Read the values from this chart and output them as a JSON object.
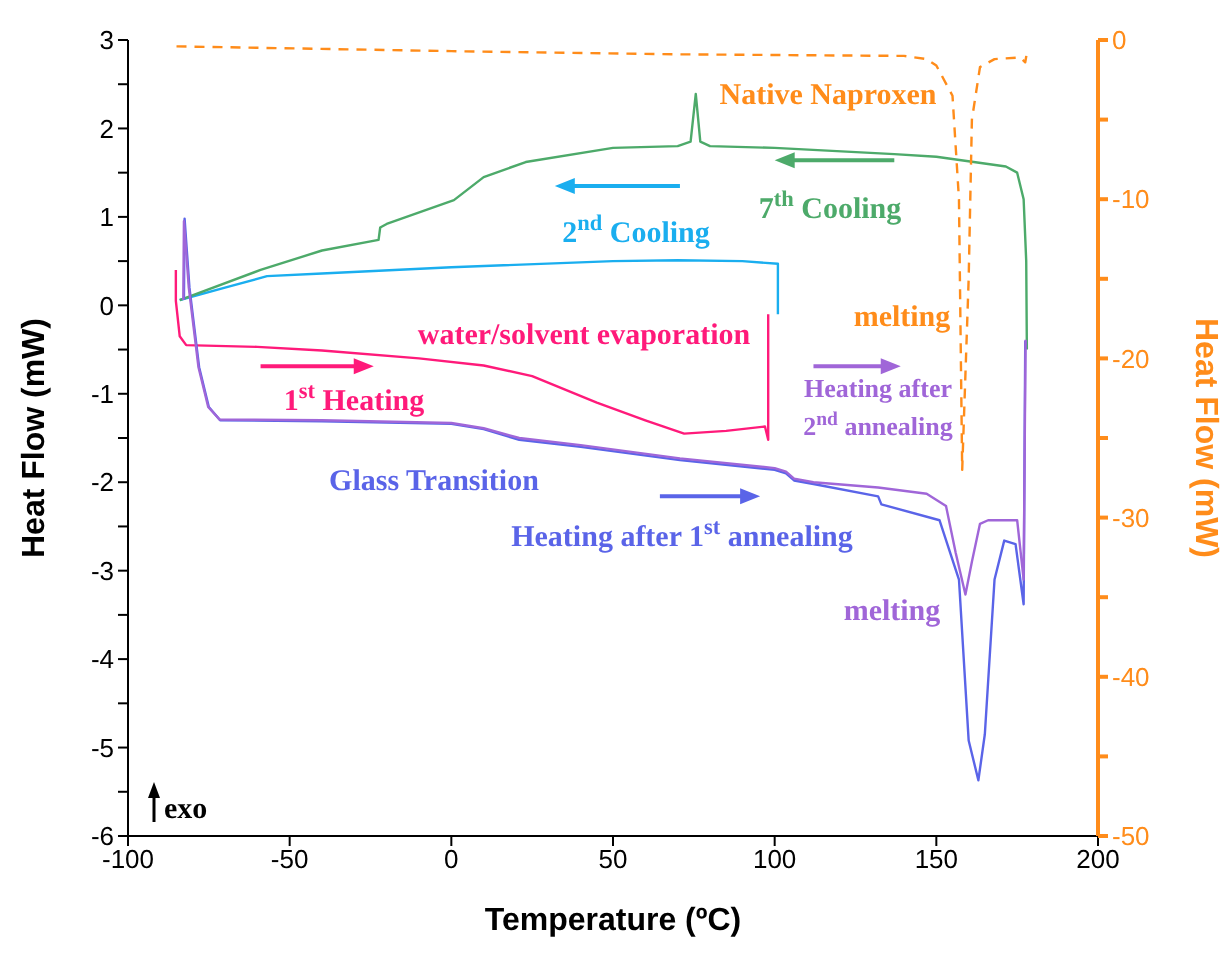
{
  "chart_data": {
    "type": "line",
    "xlabel": "Temperature (ºC)",
    "ylabel": "Heat Flow (mW)",
    "y2label": "Heat Flow (mW)",
    "xlim": [
      -100,
      200
    ],
    "xticks": [
      -100,
      -50,
      0,
      50,
      100,
      150,
      200
    ],
    "ylim": [
      -6,
      3
    ],
    "yticks": [
      -6,
      {
        "value": -5.5,
        "label": null
      },
      -5,
      {
        "value": -4.5,
        "label": null
      },
      -4,
      {
        "value": -3.5,
        "label": null
      },
      -3,
      {
        "value": -2.5,
        "label": null
      },
      -2,
      {
        "value": -1.5,
        "label": null
      },
      -1,
      {
        "value": -0.5,
        "label": null
      },
      0,
      {
        "value": 0.5,
        "label": null
      },
      1,
      {
        "value": 1.5,
        "label": null
      },
      2,
      {
        "value": 2.5,
        "label": null
      },
      3
    ],
    "y2lim": [
      -50,
      0
    ],
    "y2ticks": [
      -50,
      {
        "value": -45,
        "label": null
      },
      -40,
      {
        "value": -35,
        "label": null
      },
      -30,
      {
        "value": -25,
        "label": null
      },
      -20,
      {
        "value": -15,
        "label": null
      },
      -10,
      {
        "value": -5,
        "label": null
      },
      0
    ],
    "marker": "none",
    "legend": "top",
    "series": [
      {
        "name": "1$^{st}$ Heating",
        "color": "#ff1a7a",
        "x": [
          -85.2,
          -85.2,
          -84,
          -82,
          -60,
          -40,
          -10,
          10,
          25,
          45,
          60,
          72,
          85,
          97,
          98,
          98
        ],
        "values": [
          0.4,
          0.05,
          -0.35,
          -0.45,
          -0.47,
          -0.51,
          -0.6,
          -0.68,
          -0.8,
          -1.1,
          -1.3,
          -1.45,
          -1.42,
          -1.37,
          -1.52,
          -0.1
        ]
      },
      {
        "name": "2$^{nd}$ Cooling",
        "color": "#1aaeef",
        "x": [
          101,
          101,
          90,
          70,
          50,
          0,
          -40,
          -57,
          -70,
          -84
        ],
        "values": [
          -0.1,
          0.47,
          0.5,
          0.51,
          0.5,
          0.43,
          0.36,
          0.33,
          0.2,
          0.06
        ]
      },
      {
        "name": "7$^{th}$ Cooling",
        "color": "#4daa6a",
        "x": [
          178,
          177.8,
          177,
          175,
          171.5,
          150,
          137,
          100,
          80,
          77,
          75.6,
          74,
          70,
          50,
          23,
          10,
          0.8,
          -20,
          -22,
          -22.5,
          -40,
          -59,
          -84
        ],
        "values": [
          -0.5,
          0.5,
          1.2,
          1.5,
          1.57,
          1.68,
          1.71,
          1.78,
          1.8,
          1.85,
          2.39,
          1.85,
          1.8,
          1.78,
          1.62,
          1.45,
          1.19,
          0.92,
          0.88,
          0.74,
          0.62,
          0.4,
          0.06
        ]
      },
      {
        "name": "Heating after 1$^{st}$ annealing",
        "color": "#5a64e8",
        "x": [
          -82.7,
          -82.5,
          -81,
          -78,
          -75,
          -71.5,
          -40,
          0,
          10,
          21,
          40,
          70.7,
          100,
          103.5,
          106,
          112,
          132,
          133,
          151,
          157,
          160,
          163,
          165,
          168,
          171,
          174.5,
          177,
          177.5
        ],
        "values": [
          0.06,
          0.98,
          0.2,
          -0.7,
          -1.15,
          -1.3,
          -1.31,
          -1.34,
          -1.4,
          -1.52,
          -1.6,
          -1.75,
          -1.86,
          -1.9,
          -1.98,
          -2.02,
          -2.16,
          -2.25,
          -2.43,
          -3.1,
          -4.92,
          -5.37,
          -4.85,
          -3.1,
          -2.66,
          -2.7,
          -3.38,
          -0.4
        ]
      },
      {
        "name": "Heating after 2$^{nd}$ annealing",
        "color": "#a066d8",
        "x": [
          -82.9,
          -82.7,
          -81.2,
          -78.2,
          -75.2,
          -71.7,
          -40,
          0,
          10,
          21,
          40,
          70.7,
          100,
          103.5,
          106,
          112,
          132,
          147,
          153,
          156,
          159,
          161,
          163.5,
          166,
          175,
          177,
          177.6
        ],
        "values": [
          0.06,
          0.95,
          0.2,
          -0.7,
          -1.15,
          -1.29,
          -1.3,
          -1.33,
          -1.39,
          -1.5,
          -1.58,
          -1.73,
          -1.84,
          -1.88,
          -1.96,
          -2.0,
          -2.06,
          -2.13,
          -2.27,
          -2.8,
          -3.27,
          -2.9,
          -2.47,
          -2.43,
          -2.43,
          -3.1,
          -0.39
        ]
      },
      {
        "name": "Native Naproxen",
        "color": "#ff8c1a",
        "axis": "y2",
        "line_style": "dashed",
        "x": [
          -85,
          0,
          70,
          140,
          147,
          150,
          155,
          157,
          158,
          160,
          161,
          163.5,
          168,
          176,
          177.5,
          178
        ],
        "values": [
          -0.4,
          -0.7,
          -0.9,
          -1.0,
          -1.2,
          -1.6,
          -3.5,
          -10,
          -27,
          -15,
          -5,
          -1.7,
          -1.2,
          -1.1,
          -1.4,
          -0.8
        ]
      }
    ],
    "annotations": [
      "water/solvent evaporation",
      "melting",
      "Glass Transition",
      "melting",
      "exo"
    ]
  }
}
